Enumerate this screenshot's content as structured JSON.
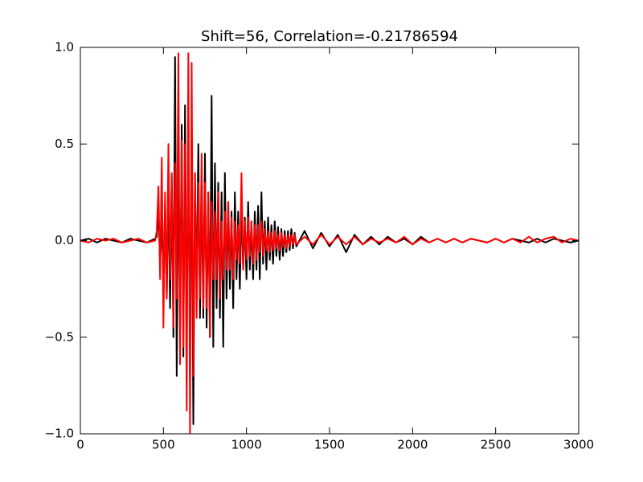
{
  "chart_data": {
    "type": "line",
    "title": "Shift=56, Correlation=-0.21786594",
    "x": [
      0,
      50,
      100,
      150,
      200,
      250,
      300,
      350,
      400,
      450,
      460,
      470,
      480,
      490,
      500,
      510,
      520,
      530,
      540,
      550,
      560,
      570,
      580,
      590,
      600,
      610,
      620,
      630,
      640,
      650,
      660,
      670,
      680,
      690,
      700,
      710,
      720,
      730,
      740,
      750,
      760,
      770,
      780,
      790,
      800,
      810,
      820,
      830,
      840,
      850,
      860,
      870,
      880,
      890,
      900,
      910,
      920,
      930,
      940,
      950,
      960,
      970,
      980,
      990,
      1000,
      1010,
      1020,
      1030,
      1040,
      1050,
      1060,
      1070,
      1080,
      1090,
      1100,
      1110,
      1120,
      1130,
      1140,
      1150,
      1160,
      1170,
      1180,
      1190,
      1200,
      1210,
      1220,
      1230,
      1240,
      1250,
      1260,
      1270,
      1280,
      1290,
      1300,
      1350,
      1400,
      1450,
      1500,
      1550,
      1600,
      1650,
      1700,
      1750,
      1800,
      1850,
      1900,
      1950,
      2000,
      2050,
      2100,
      2150,
      2200,
      2250,
      2300,
      2350,
      2400,
      2450,
      2500,
      2550,
      2600,
      2650,
      2700,
      2750,
      2800,
      2850,
      2900,
      2950,
      3000
    ],
    "series": [
      {
        "color": "#000000",
        "values": [
          0,
          0.01,
          -0.01,
          0.01,
          0,
          -0.01,
          0.01,
          0,
          -0.01,
          0.01,
          0.02,
          0.15,
          -0.12,
          0.1,
          -0.2,
          0.2,
          -0.3,
          0.3,
          -0.35,
          0.33,
          -0.5,
          0.95,
          -0.7,
          0.5,
          -0.45,
          0.6,
          -0.6,
          0.7,
          -0.55,
          0.4,
          -0.4,
          0.45,
          -0.95,
          0.35,
          -0.3,
          0.5,
          -0.4,
          0.3,
          -0.4,
          0.45,
          -0.45,
          0.25,
          -0.5,
          0.75,
          -0.55,
          0.4,
          -0.35,
          0.3,
          -0.4,
          0.25,
          -0.55,
          0.35,
          -0.3,
          0.2,
          -0.25,
          0.15,
          -0.35,
          0.25,
          -0.2,
          0.15,
          -0.25,
          0.2,
          -0.15,
          0.12,
          -0.2,
          0.2,
          -0.15,
          0.1,
          -0.2,
          0.15,
          -0.15,
          0.18,
          -0.2,
          0.25,
          -0.12,
          0.1,
          -0.15,
          0.12,
          -0.1,
          0.08,
          -0.12,
          0.1,
          -0.08,
          0.07,
          -0.1,
          0.06,
          -0.08,
          0.05,
          -0.06,
          0.05,
          -0.05,
          0.06,
          -0.04,
          0.04,
          -0.03,
          0.05,
          -0.04,
          0.04,
          -0.03,
          0.03,
          -0.06,
          0.03,
          -0.02,
          0.02,
          -0.02,
          0.02,
          -0.01,
          0.01,
          -0.02,
          0.02,
          -0.01,
          0.01,
          -0.01,
          0.01,
          -0.01,
          0.01,
          0,
          -0.01,
          0.01,
          -0.01,
          0.01,
          0,
          -0.01,
          0.01,
          -0.01,
          0.01,
          0,
          -0.01,
          0
        ]
      },
      {
        "color": "#ff0000",
        "values": [
          0,
          -0.01,
          0.01,
          0,
          0.01,
          -0.01,
          0,
          0.01,
          -0.01,
          0,
          0.05,
          0.28,
          -0.2,
          0.43,
          -0.45,
          0.25,
          -0.3,
          0.5,
          -0.2,
          0.35,
          -0.45,
          0.4,
          -0.3,
          0.97,
          -0.64,
          0.52,
          -0.55,
          0.5,
          -0.88,
          0.97,
          -1.0,
          0.92,
          -0.7,
          0.35,
          -0.4,
          0.3,
          -0.3,
          0.45,
          -0.35,
          0.3,
          -0.35,
          0.25,
          -0.5,
          0.2,
          -0.2,
          0.15,
          -0.2,
          0.25,
          -0.3,
          0.1,
          -0.2,
          0.15,
          -0.15,
          0.2,
          -0.15,
          0.12,
          -0.2,
          0.1,
          -0.1,
          0.08,
          -0.12,
          0.35,
          -0.15,
          0.1,
          -0.1,
          0.12,
          -0.08,
          0.1,
          -0.12,
          0.08,
          -0.1,
          0.08,
          -0.06,
          0.1,
          -0.08,
          0.06,
          -0.05,
          0.05,
          -0.06,
          0.04,
          -0.05,
          0.05,
          -0.04,
          0.03,
          -0.05,
          0.04,
          -0.03,
          0.03,
          -0.04,
          0.03,
          -0.03,
          0.03,
          -0.02,
          0.03,
          -0.02,
          0.02,
          -0.02,
          0.03,
          -0.02,
          0.02,
          -0.02,
          0.02,
          -0.02,
          0.01,
          -0.01,
          0.01,
          -0.01,
          0.02,
          -0.02,
          0.01,
          -0.01,
          0.01,
          -0.01,
          0.01,
          -0.01,
          0.01,
          0,
          -0.01,
          0.01,
          -0.01,
          0.01,
          -0.01,
          0.02,
          -0.01,
          0.01,
          0.02,
          -0.01,
          0.01,
          0
        ]
      }
    ],
    "xlim": [
      0,
      3000
    ],
    "xticks": [
      0,
      500,
      1000,
      1500,
      2000,
      2500,
      3000
    ],
    "ylim": [
      -1,
      1
    ],
    "yticks": [
      {
        "value": -1,
        "label": "−1.0"
      },
      {
        "value": -0.5,
        "label": "−0.5"
      },
      {
        "value": 0,
        "label": "0.0"
      },
      0.5,
      {
        "value": 1,
        "label": "1.0"
      }
    ],
    "grid": false
  }
}
